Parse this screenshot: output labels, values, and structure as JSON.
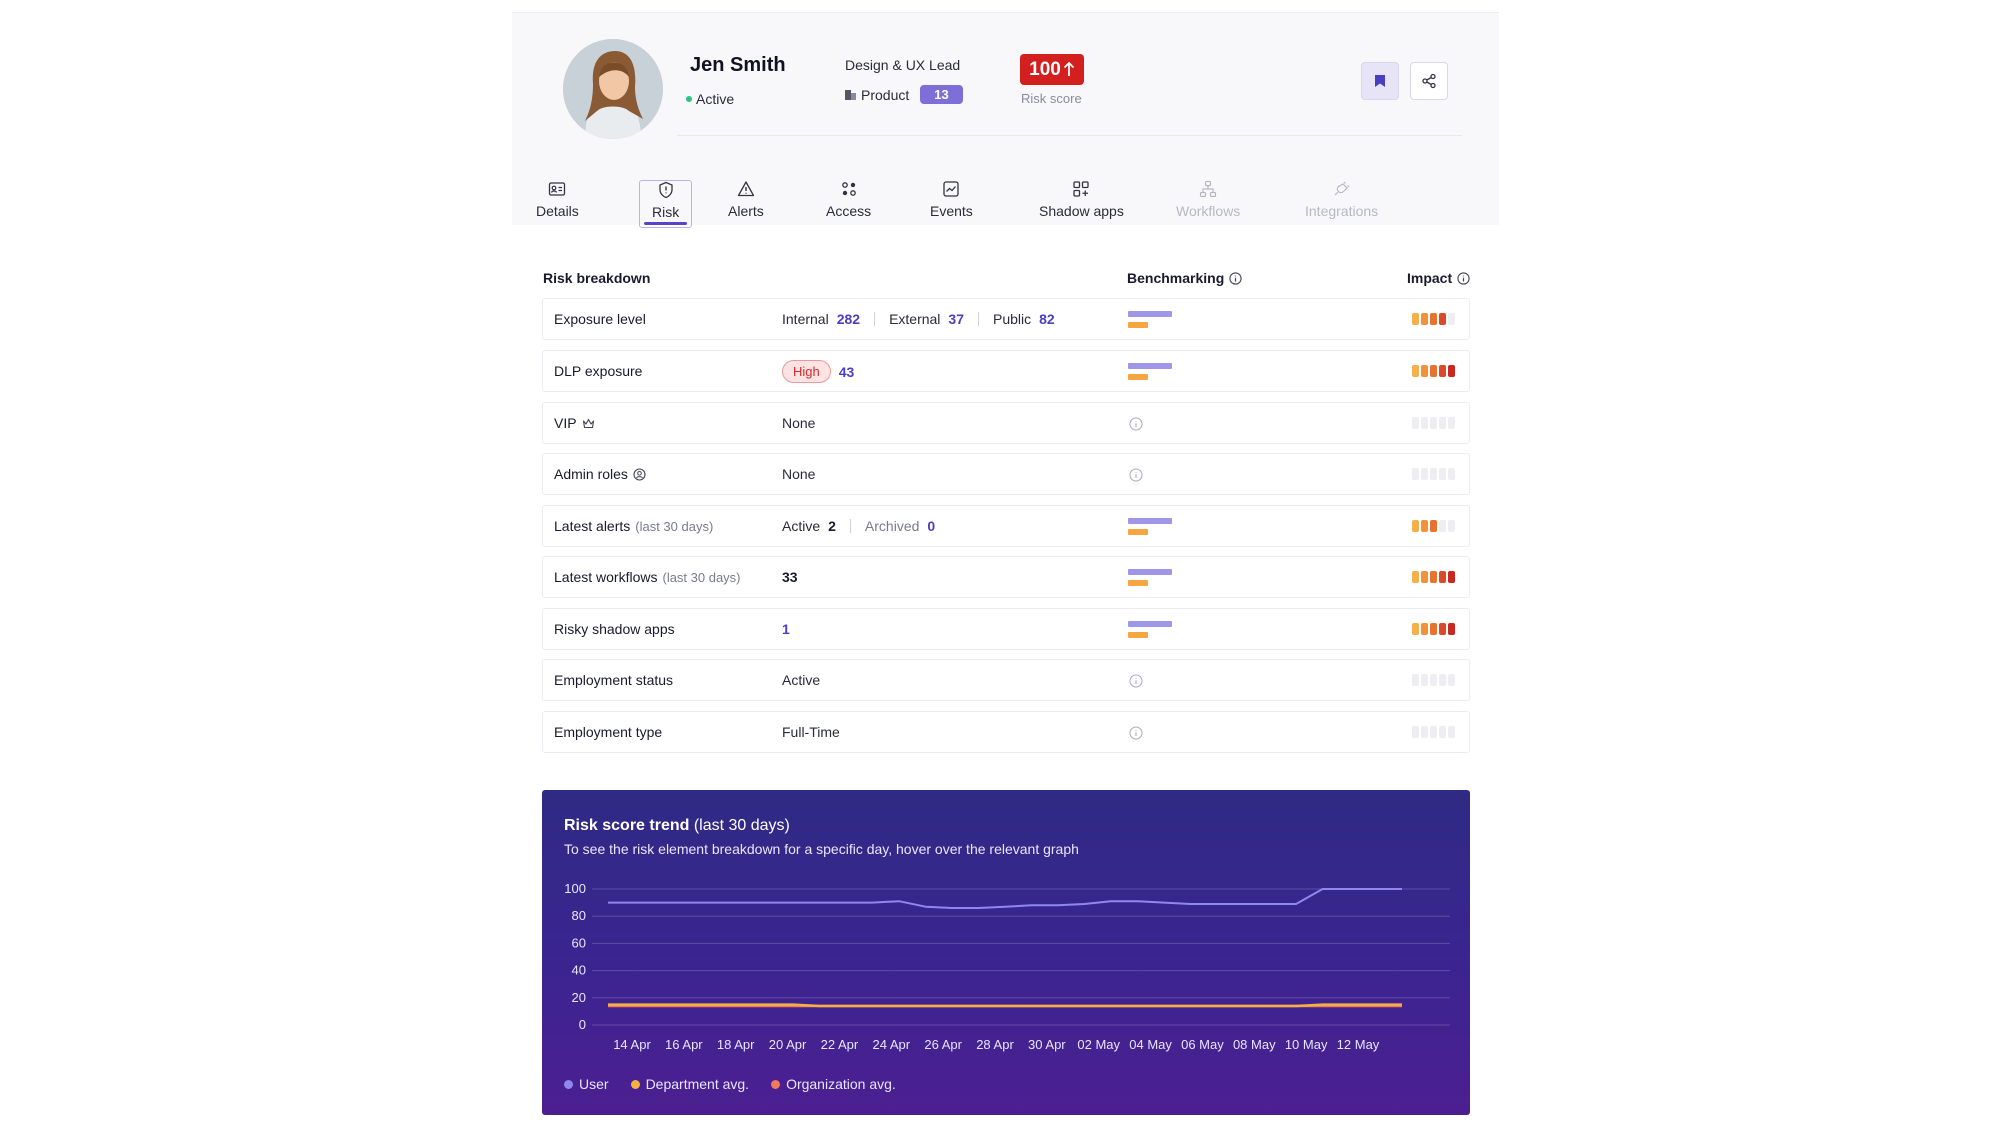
{
  "profile": {
    "name": "Jen Smith",
    "status": "Active",
    "job_title": "Design & UX Lead",
    "department": "Product",
    "department_count": "13",
    "risk_score": "100",
    "risk_score_label": "Risk score"
  },
  "tabs": [
    {
      "label": "Details",
      "icon": "id-card-icon",
      "state": "normal"
    },
    {
      "label": "Risk",
      "icon": "shield-icon",
      "state": "active"
    },
    {
      "label": "Alerts",
      "icon": "warning-icon",
      "state": "normal"
    },
    {
      "label": "Access",
      "icon": "access-icon",
      "state": "normal"
    },
    {
      "label": "Events",
      "icon": "chart-line-icon",
      "state": "normal"
    },
    {
      "label": "Shadow apps",
      "icon": "apps-grid-icon",
      "state": "normal"
    },
    {
      "label": "Workflows",
      "icon": "workflow-icon",
      "state": "disabled"
    },
    {
      "label": "Integrations",
      "icon": "plug-icon",
      "state": "disabled"
    }
  ],
  "breakdown": {
    "title": "Risk breakdown",
    "benchmarking_label": "Benchmarking",
    "impact_label": "Impact",
    "rows": [
      {
        "label": "Exposure level",
        "internal_label": "Internal",
        "internal": "282",
        "external_label": "External",
        "external": "37",
        "public_label": "Public",
        "public": "82",
        "impact": 4
      },
      {
        "label": "DLP exposure",
        "level": "High",
        "count": "43",
        "impact": 5
      },
      {
        "label": "VIP",
        "value": "None",
        "impact": 0
      },
      {
        "label": "Admin roles",
        "value": "None",
        "impact": 0
      },
      {
        "label": "Latest alerts",
        "sub": "(last 30 days)",
        "active_label": "Active",
        "active": "2",
        "archived_label": "Archived",
        "archived": "0",
        "impact": 3
      },
      {
        "label": "Latest workflows",
        "sub": "(last 30 days)",
        "value": "33",
        "impact": 5
      },
      {
        "label": "Risky shadow apps",
        "value": "1",
        "impact": 5
      },
      {
        "label": "Employment status",
        "value": "Active",
        "impact": 0
      },
      {
        "label": "Employment type",
        "value": "Full-Time",
        "impact": 0
      }
    ]
  },
  "colors": {
    "impact_scale": [
      "#f5b04a",
      "#f0923c",
      "#e8732f",
      "#d9492a",
      "#c9271f"
    ],
    "impact_empty": "#eeeef2",
    "user_series": "#8f87f0",
    "department_series": "#f5b041",
    "organization_series": "#f07a5a"
  },
  "trend": {
    "title": "Risk score trend",
    "title_sub": "(last 30 days)",
    "description": "To see the risk element breakdown for a specific day, hover over the relevant graph"
  },
  "chart_data": {
    "type": "line",
    "title": "Risk score trend (last 30 days)",
    "xlabel": "",
    "ylabel": "",
    "ylim": [
      0,
      100
    ],
    "yticks": [
      0,
      20,
      40,
      60,
      80,
      100
    ],
    "x_tick_labels": [
      "14 Apr",
      "16 Apr",
      "18 Apr",
      "20 Apr",
      "22 Apr",
      "24 Apr",
      "26 Apr",
      "28 Apr",
      "30 Apr",
      "02 May",
      "04 May",
      "06 May",
      "08 May",
      "10 May",
      "12 May"
    ],
    "grid": true,
    "legend_position": "bottom-left",
    "series": [
      {
        "name": "User",
        "values": [
          90,
          90,
          90,
          90,
          90,
          90,
          90,
          90,
          90,
          90,
          90,
          91,
          87,
          86,
          86,
          87,
          88,
          88,
          89,
          91,
          91,
          90,
          89,
          89,
          89,
          89,
          89,
          100,
          100,
          100,
          100
        ]
      },
      {
        "name": "Department avg.",
        "values": [
          15,
          15,
          15,
          15,
          15,
          15,
          15,
          15,
          14,
          14,
          14,
          14,
          14,
          14,
          14,
          14,
          14,
          14,
          14,
          14,
          14,
          14,
          14,
          14,
          14,
          14,
          14,
          15,
          15,
          15,
          15
        ]
      },
      {
        "name": "Organization avg.",
        "values": [
          14,
          14,
          14,
          14,
          14,
          14,
          14,
          14,
          14,
          14,
          14,
          14,
          14,
          14,
          14,
          14,
          14,
          14,
          14,
          14,
          14,
          14,
          14,
          14,
          14,
          14,
          14,
          14,
          14,
          14,
          14
        ]
      }
    ]
  }
}
